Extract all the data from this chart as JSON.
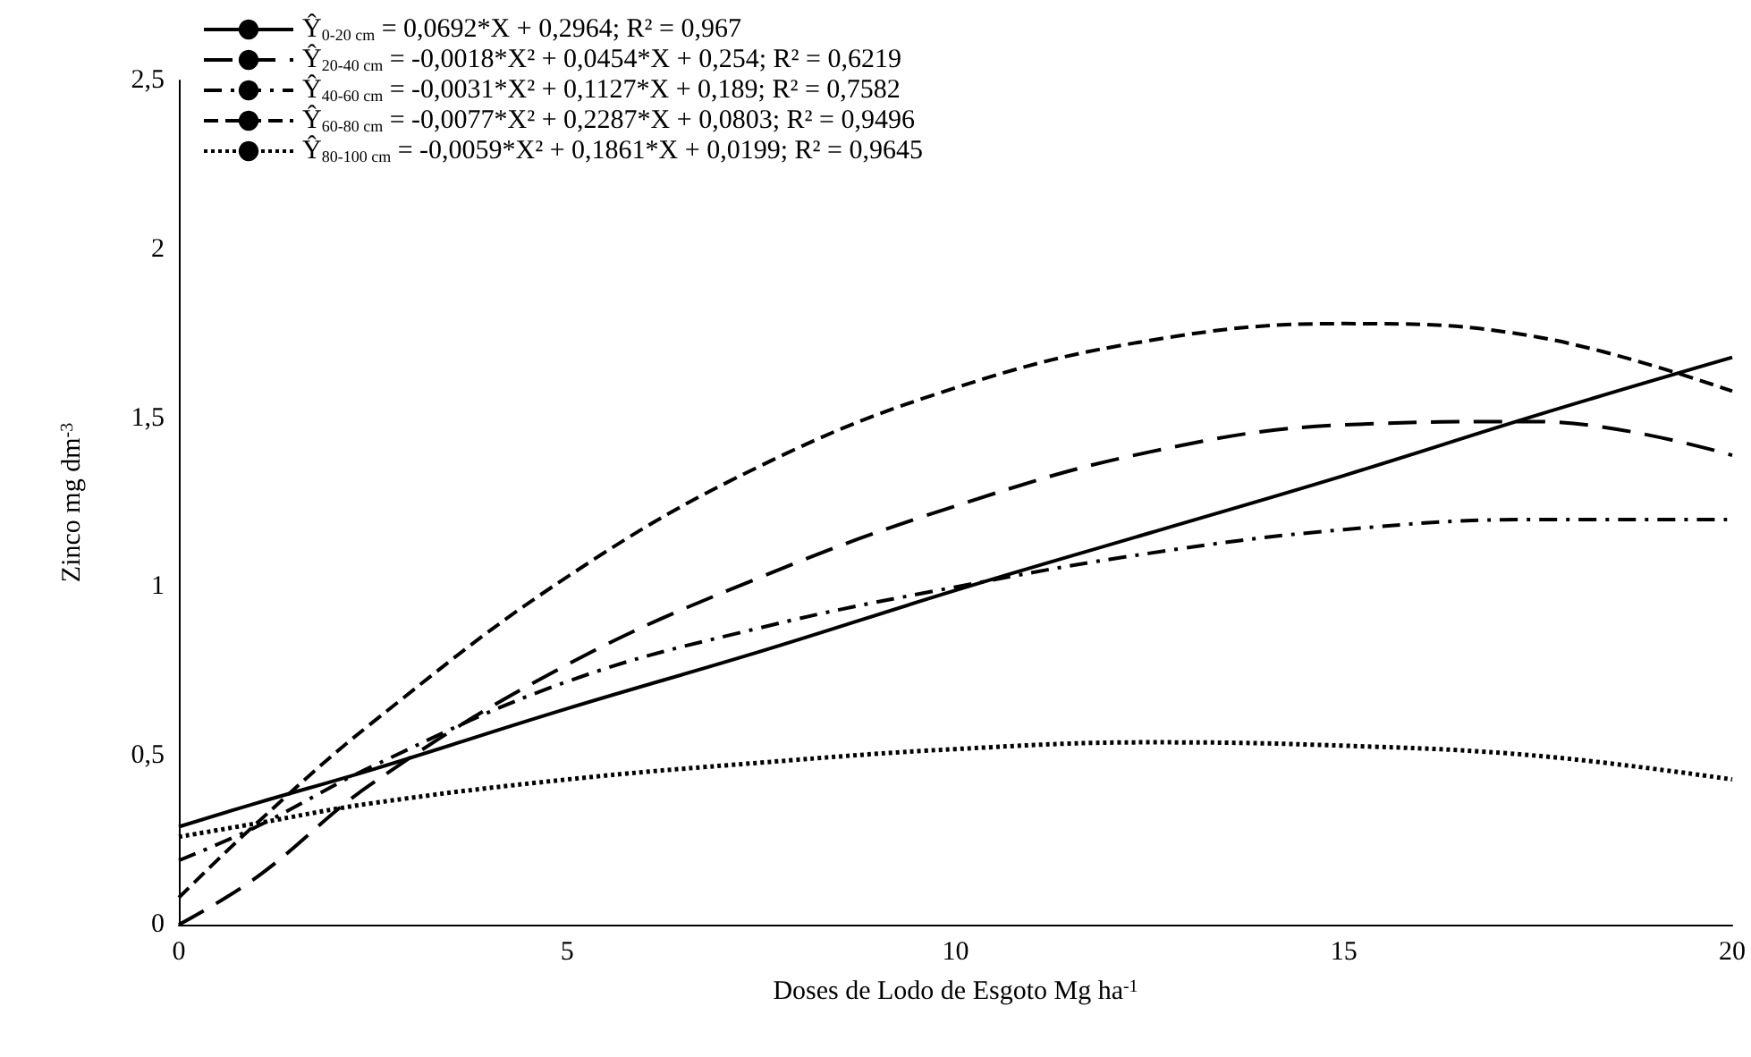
{
  "chart_data": {
    "type": "line",
    "xlabel": "Doses de Lodo de Esgoto Mg ha$^{-1}$",
    "ylabel": "Zinco mg dm$^{-3}$",
    "x": [
      0,
      1,
      2.5,
      5,
      7.5,
      10,
      12.5,
      15,
      17.5,
      20
    ],
    "series": [
      {
        "name": "Ŷ$_{0-20 cm}$ = 0,0692*X + 0,2964; R² = 0,967",
        "color": "#000000",
        "line_style": "solid",
        "values": [
          0.29,
          0.36,
          0.46,
          0.64,
          0.81,
          0.99,
          1.16,
          1.33,
          1.51,
          1.68
        ]
      },
      {
        "name": "Ŷ$_{20-40 cm}$ = -0,0018*X² + 0,0454*X + 0,254; R² = 0,6219",
        "color": "#000000",
        "line_style": "long-dashed",
        "values": [
          0.0,
          0.14,
          0.42,
          0.77,
          1.03,
          1.24,
          1.4,
          1.48,
          1.49,
          1.39
        ]
      },
      {
        "name": "Ŷ$_{40-60 cm}$ = -0,0031*X² + 0,1127*X + 0,189; R² = 0,7582",
        "color": "#000000",
        "line_style": "dash-dot",
        "values": [
          0.19,
          0.29,
          0.47,
          0.72,
          0.88,
          1.0,
          1.1,
          1.17,
          1.2,
          1.2
        ]
      },
      {
        "name": "Ŷ$_{60-80 cm}$ = -0,0077*X² + 0,2287*X + 0,0803; R² = 0,9496",
        "color": "#000000",
        "line_style": "dashed",
        "values": [
          0.08,
          0.3,
          0.6,
          1.03,
          1.36,
          1.59,
          1.73,
          1.78,
          1.74,
          1.58
        ]
      },
      {
        "name": "Ŷ$_{80-100 cm}$ = -0,0059*X² + 0,1861*X + 0,0199; R² = 0,9645",
        "color": "#000000",
        "line_style": "dotted",
        "values": [
          0.26,
          0.3,
          0.36,
          0.43,
          0.48,
          0.52,
          0.54,
          0.53,
          0.5,
          0.43
        ]
      }
    ],
    "xlim": [
      0,
      20
    ],
    "xticks": [
      0,
      5,
      10,
      15,
      20
    ],
    "ylim": [
      0,
      2.5
    ],
    "yticks": [
      0,
      {
        "value": 0.5,
        "label": "0,5"
      },
      1,
      {
        "value": 1.5,
        "label": "1,5"
      },
      2,
      {
        "value": 2.5,
        "label": "2,5"
      }
    ],
    "grid": false,
    "legend": "top left",
    "marker": "none"
  }
}
